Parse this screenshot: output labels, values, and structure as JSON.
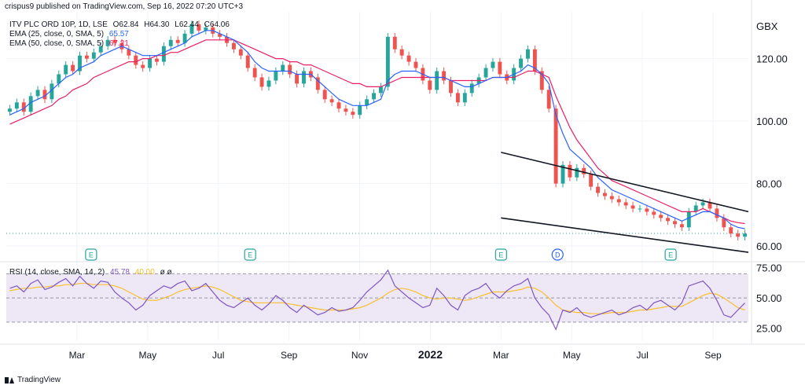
{
  "header": {
    "published": "crispus9 published on TradingView.com, Sep 16, 2022 07:20 UTC+3",
    "symbol": "ITV PLC ORD 10P, 1D, LSE",
    "ohlc": {
      "o": "O62.84",
      "h": "H64.30",
      "l": "L62.44",
      "c": "C64.06"
    },
    "ema25_label": "EMA (25, close, 0, SMA, 5)",
    "ema25_value": "65.57",
    "ema50_label": "EMA (50, close, 0, SMA, 5)",
    "ema50_value": "67.21",
    "rsi_label": "RSI (14, close, SMA, 14, 2)",
    "rsi_value": "45.78",
    "rsi_ma_value": "40.00",
    "rsi_extra": "ø ø"
  },
  "footer": {
    "brand": "TradingView"
  },
  "colors": {
    "up": "#26a69a",
    "down": "#ef5350",
    "ema25": "#2962ff",
    "ema50": "#e91e63",
    "rsi": "#7e57c2",
    "rsi_ma": "#fbc02d",
    "rsi_band": "#ede7f6"
  },
  "chart_data": {
    "type": "candlestick",
    "price_unit": "GBX",
    "price_ticks": [
      "120.00",
      "100.00",
      "80.00",
      "60.00"
    ],
    "price_tick_values": [
      120,
      100,
      80,
      60
    ],
    "last_price": 64.06,
    "x_ticks": [
      "Mar",
      "May",
      "Jul",
      "Sep",
      "Nov",
      "2022",
      "Mar",
      "May",
      "Jul",
      "Sep"
    ],
    "x_tick_months": [
      2,
      4,
      6,
      8,
      10,
      12,
      14,
      16,
      18,
      20
    ],
    "event_markers": [
      {
        "label": "E",
        "month": 2.4
      },
      {
        "label": "E",
        "month": 6.9
      },
      {
        "label": "E",
        "month": 14.0
      },
      {
        "label": "D",
        "month": 15.6
      },
      {
        "label": "E",
        "month": 18.8
      }
    ],
    "close": [
      104,
      106,
      103,
      108,
      110,
      107,
      112,
      115,
      118,
      116,
      121,
      120,
      122,
      124,
      126,
      125,
      123,
      121,
      118,
      117,
      120,
      119,
      124,
      126,
      125,
      128,
      131,
      129,
      130,
      128,
      127,
      125,
      123,
      121,
      117,
      114,
      111,
      113,
      116,
      118,
      115,
      112,
      116,
      114,
      110,
      107,
      106,
      104,
      103,
      102,
      105,
      107,
      109,
      111,
      127,
      123,
      121,
      119,
      117,
      113,
      110,
      116,
      113,
      109,
      106,
      109,
      112,
      114,
      117,
      119,
      115,
      113,
      117,
      120,
      123,
      116,
      110,
      104,
      80,
      86,
      82,
      85,
      83,
      79,
      77,
      76,
      75,
      74,
      73,
      72,
      72,
      71,
      70,
      69,
      68,
      67,
      66,
      71,
      73,
      74,
      72,
      69,
      66,
      64,
      63,
      64
    ],
    "ema25": [
      102,
      103,
      104,
      106,
      107,
      108,
      110,
      112,
      114,
      115,
      117,
      118,
      119,
      121,
      122,
      123,
      124,
      123,
      122,
      121,
      121,
      121,
      122,
      123,
      124,
      125,
      127,
      128,
      129,
      129,
      128,
      127,
      126,
      124,
      122,
      119,
      117,
      116,
      116,
      116,
      116,
      115,
      115,
      115,
      113,
      111,
      109,
      107,
      106,
      105,
      105,
      105,
      106,
      107,
      113,
      115,
      116,
      116,
      116,
      115,
      114,
      114,
      114,
      113,
      112,
      111,
      111,
      112,
      113,
      114,
      114,
      114,
      115,
      116,
      118,
      117,
      115,
      112,
      102,
      96,
      91,
      89,
      87,
      85,
      82,
      80,
      78,
      77,
      76,
      75,
      74,
      73,
      72,
      71,
      70,
      69,
      68,
      69,
      70,
      71,
      71,
      70,
      69,
      67,
      66,
      65.57
    ],
    "ema50": [
      99,
      100,
      101,
      102,
      103,
      104,
      105,
      107,
      108,
      110,
      111,
      112,
      114,
      115,
      116,
      117,
      118,
      119,
      119,
      120,
      120,
      121,
      121,
      122,
      122,
      123,
      124,
      125,
      126,
      126,
      126,
      126,
      126,
      125,
      124,
      123,
      122,
      121,
      120,
      120,
      119,
      119,
      118,
      118,
      117,
      116,
      115,
      114,
      113,
      112,
      112,
      111,
      111,
      111,
      112,
      113,
      114,
      114,
      114,
      114,
      114,
      114,
      114,
      113,
      113,
      113,
      113,
      113,
      113,
      114,
      114,
      114,
      114,
      115,
      116,
      116,
      115,
      114,
      108,
      103,
      98,
      94,
      91,
      88,
      85,
      83,
      81,
      80,
      79,
      78,
      77,
      76,
      75,
      74,
      73,
      72,
      71,
      71,
      71,
      72,
      71,
      70,
      69,
      68,
      67.5,
      67.21
    ],
    "rsi": [
      58,
      60,
      55,
      62,
      65,
      57,
      59,
      63,
      66,
      60,
      68,
      62,
      58,
      64,
      63,
      55,
      50,
      46,
      40,
      44,
      52,
      56,
      60,
      58,
      62,
      64,
      56,
      58,
      62,
      55,
      48,
      44,
      42,
      46,
      50,
      44,
      40,
      45,
      52,
      48,
      42,
      38,
      44,
      40,
      36,
      38,
      42,
      39,
      40,
      42,
      48,
      55,
      60,
      65,
      73,
      60,
      55,
      50,
      46,
      42,
      44,
      58,
      52,
      44,
      40,
      52,
      56,
      58,
      62,
      54,
      50,
      56,
      60,
      62,
      66,
      50,
      42,
      36,
      24,
      40,
      38,
      42,
      36,
      34,
      36,
      38,
      40,
      36,
      38,
      42,
      44,
      40,
      46,
      48,
      44,
      40,
      46,
      60,
      62,
      64,
      58,
      48,
      36,
      34,
      40,
      45.78
    ],
    "rsi_ma": [
      56,
      57,
      58,
      58,
      59,
      59,
      60,
      60,
      61,
      61,
      62,
      62,
      61,
      61,
      61,
      60,
      58,
      55,
      52,
      49,
      48,
      48,
      50,
      52,
      55,
      57,
      58,
      59,
      60,
      59,
      57,
      54,
      51,
      48,
      47,
      46,
      46,
      46,
      46,
      46,
      45,
      44,
      43,
      42,
      41,
      40,
      40,
      40,
      40,
      41,
      42,
      44,
      47,
      50,
      54,
      57,
      58,
      57,
      55,
      52,
      50,
      49,
      50,
      50,
      49,
      48,
      49,
      51,
      53,
      55,
      55,
      55,
      56,
      57,
      59,
      58,
      55,
      50,
      44,
      40,
      39,
      38,
      38,
      37,
      37,
      37,
      38,
      38,
      38,
      39,
      40,
      40,
      41,
      42,
      43,
      43,
      43,
      46,
      49,
      52,
      54,
      53,
      50,
      46,
      42,
      40
    ],
    "price_ylim": [
      55,
      135
    ],
    "rsi_ticks": [
      "75.00",
      "50.00",
      "25.00"
    ],
    "rsi_tick_values": [
      75,
      50,
      25
    ],
    "rsi_ylim": [
      15,
      80
    ],
    "rsi_band": [
      30,
      70
    ],
    "rsi_mid": 50,
    "channel": {
      "upper": [
        [
          14.0,
          90
        ],
        [
          21.0,
          71
        ]
      ],
      "lower": [
        [
          14.0,
          69
        ],
        [
          21.0,
          58
        ]
      ]
    }
  }
}
